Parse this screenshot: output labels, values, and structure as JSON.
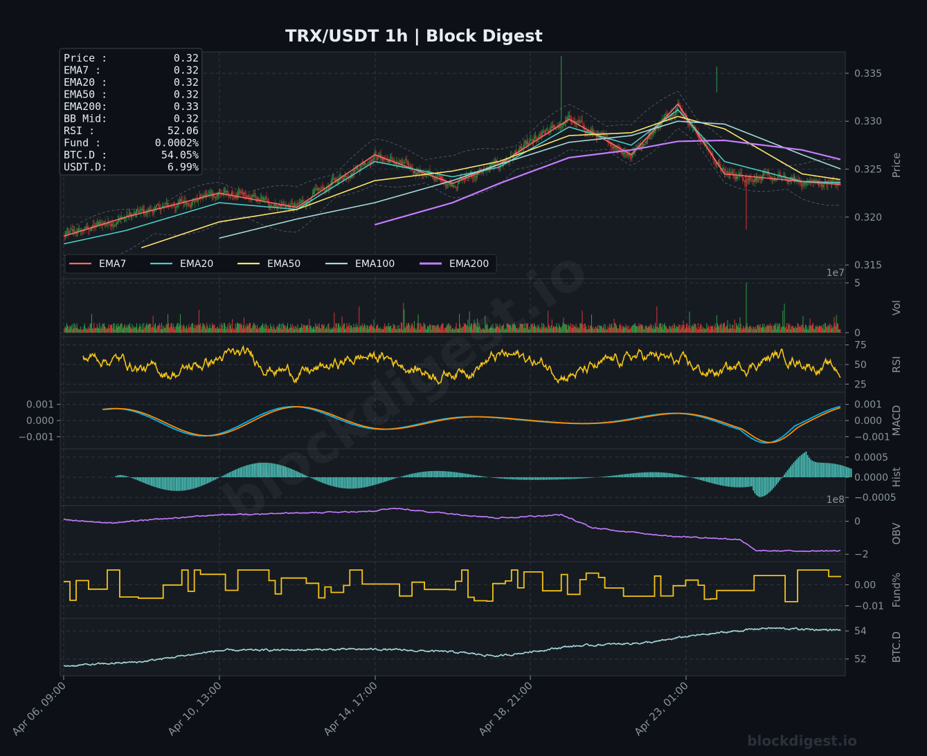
{
  "title": "TRX/USDT  1h  |  Block Digest",
  "watermark": "blockdigest.io",
  "footer_brand": "blockdigest.io",
  "colors": {
    "background": "#0d1117",
    "panel": "#161b22",
    "grid": "#30363d",
    "text": "#8b949e",
    "title": "#e6edf3",
    "ema7": "#ff6b6b",
    "ema20": "#4ecdc4",
    "ema50": "#ffe66d",
    "ema100": "#a8dadc",
    "ema200": "#c77dff",
    "up": "#2ea043",
    "down": "#da3633",
    "rsi": "#f5c518",
    "macd": "#00b4f0",
    "signal": "#ff8c00",
    "hist": "#4ecdc4",
    "obv": "#c77dff",
    "fund": "#f5c518",
    "btcd": "#a8dadc"
  },
  "info_box": [
    {
      "label": "Price :",
      "value": "0.32"
    },
    {
      "label": "EMA7  :",
      "value": "0.32"
    },
    {
      "label": "EMA20 :",
      "value": "0.32"
    },
    {
      "label": "EMA50 :",
      "value": "0.32"
    },
    {
      "label": "EMA200:",
      "value": "0.33"
    },
    {
      "label": "BB Mid:",
      "value": "0.32"
    },
    {
      "label": "RSI   :",
      "value": "52.06"
    },
    {
      "label": "Fund  :",
      "value": "0.0002%"
    },
    {
      "label": "BTC.D :",
      "value": "54.05%"
    },
    {
      "label": "USDT.D:",
      "value": "6.99%"
    }
  ],
  "legend": [
    "EMA7",
    "EMA20",
    "EMA50",
    "EMA100",
    "EMA200"
  ],
  "x_ticks": [
    "Apr 06, 09:00",
    "Apr 10, 13:00",
    "Apr 14, 17:00",
    "Apr 18, 21:00",
    "Apr 23, 01:00"
  ],
  "chart_data": [
    {
      "type": "candlestick",
      "panel": "price",
      "ylabel": "Price",
      "ylim": [
        0.314,
        0.3368
      ],
      "yticks": [
        "0.315",
        "0.320",
        "0.325",
        "0.330",
        "0.335"
      ],
      "series": [
        {
          "name": "EMA7",
          "anchors": [
            [
              0,
              0.318
            ],
            [
              80,
              0.32
            ],
            [
              200,
              0.3225
            ],
            [
              300,
              0.321
            ],
            [
              400,
              0.3265
            ],
            [
              500,
              0.3235
            ],
            [
              560,
              0.3255
            ],
            [
              650,
              0.3302
            ],
            [
              730,
              0.3265
            ],
            [
              790,
              0.3318
            ],
            [
              850,
              0.3245
            ],
            [
              950,
              0.3237
            ],
            [
              1000,
              0.3234
            ]
          ]
        },
        {
          "name": "EMA20",
          "anchors": [
            [
              0,
              0.3172
            ],
            [
              80,
              0.3186
            ],
            [
              200,
              0.3215
            ],
            [
              300,
              0.3208
            ],
            [
              400,
              0.3258
            ],
            [
              500,
              0.3242
            ],
            [
              560,
              0.3252
            ],
            [
              650,
              0.3294
            ],
            [
              730,
              0.3275
            ],
            [
              790,
              0.3312
            ],
            [
              850,
              0.3258
            ],
            [
              950,
              0.3237
            ],
            [
              1000,
              0.3236
            ]
          ]
        },
        {
          "name": "EMA50",
          "anchors": [
            [
              100,
              0.3168
            ],
            [
              200,
              0.3195
            ],
            [
              300,
              0.3208
            ],
            [
              400,
              0.3238
            ],
            [
              500,
              0.3248
            ],
            [
              560,
              0.3258
            ],
            [
              650,
              0.3285
            ],
            [
              730,
              0.3288
            ],
            [
              790,
              0.3305
            ],
            [
              850,
              0.3292
            ],
            [
              950,
              0.3245
            ],
            [
              1000,
              0.3239
            ]
          ]
        },
        {
          "name": "EMA100",
          "anchors": [
            [
              200,
              0.3178
            ],
            [
              300,
              0.3198
            ],
            [
              400,
              0.3215
            ],
            [
              500,
              0.3238
            ],
            [
              560,
              0.3255
            ],
            [
              650,
              0.3278
            ],
            [
              730,
              0.3285
            ],
            [
              790,
              0.33
            ],
            [
              850,
              0.3297
            ],
            [
              950,
              0.3265
            ],
            [
              1000,
              0.325
            ]
          ]
        },
        {
          "name": "EMA200",
          "anchors": [
            [
              400,
              0.3192
            ],
            [
              500,
              0.3215
            ],
            [
              560,
              0.3235
            ],
            [
              650,
              0.3262
            ],
            [
              730,
              0.327
            ],
            [
              790,
              0.3279
            ],
            [
              850,
              0.328
            ],
            [
              950,
              0.327
            ],
            [
              1000,
              0.326
            ]
          ]
        }
      ]
    },
    {
      "type": "bar",
      "panel": "volume",
      "ylabel": "Vol",
      "ylim": [
        0,
        5
      ],
      "scale": "1e7",
      "yticks": [
        "0",
        "5"
      ]
    },
    {
      "type": "line",
      "panel": "rsi",
      "ylabel": "RSI",
      "ylim": [
        20,
        80
      ],
      "yticks": [
        "25",
        "50",
        "75"
      ]
    },
    {
      "type": "line",
      "panel": "macd",
      "ylabel": "MACD",
      "ylim": [
        -0.0015,
        0.0015
      ],
      "yticks": [
        "-0.001",
        "0.000",
        "0.001"
      ],
      "left_yticks": [
        "-0.001",
        "0.000",
        "0.001"
      ],
      "series": [
        {
          "name": "MACD"
        },
        {
          "name": "Signal"
        }
      ]
    },
    {
      "type": "bar",
      "panel": "hist",
      "ylabel": "Hist",
      "ylim": [
        -0.0006,
        0.0006
      ],
      "yticks": [
        "-0.0005",
        "0.0000",
        "0.0005"
      ]
    },
    {
      "type": "line",
      "panel": "obv",
      "ylabel": "OBV",
      "ylim": [
        -2.2,
        0.7
      ],
      "scale": "1e8",
      "yticks": [
        "-2",
        "0"
      ]
    },
    {
      "type": "line",
      "panel": "fund",
      "ylabel": "Fund%",
      "ylim": [
        -0.014,
        0.009
      ],
      "yticks": [
        "-0.01",
        "0.00"
      ]
    },
    {
      "type": "line",
      "panel": "btcd",
      "ylabel": "BTC.D",
      "ylim": [
        51.1,
        54.6
      ],
      "yticks": [
        "52",
        "54"
      ]
    }
  ]
}
